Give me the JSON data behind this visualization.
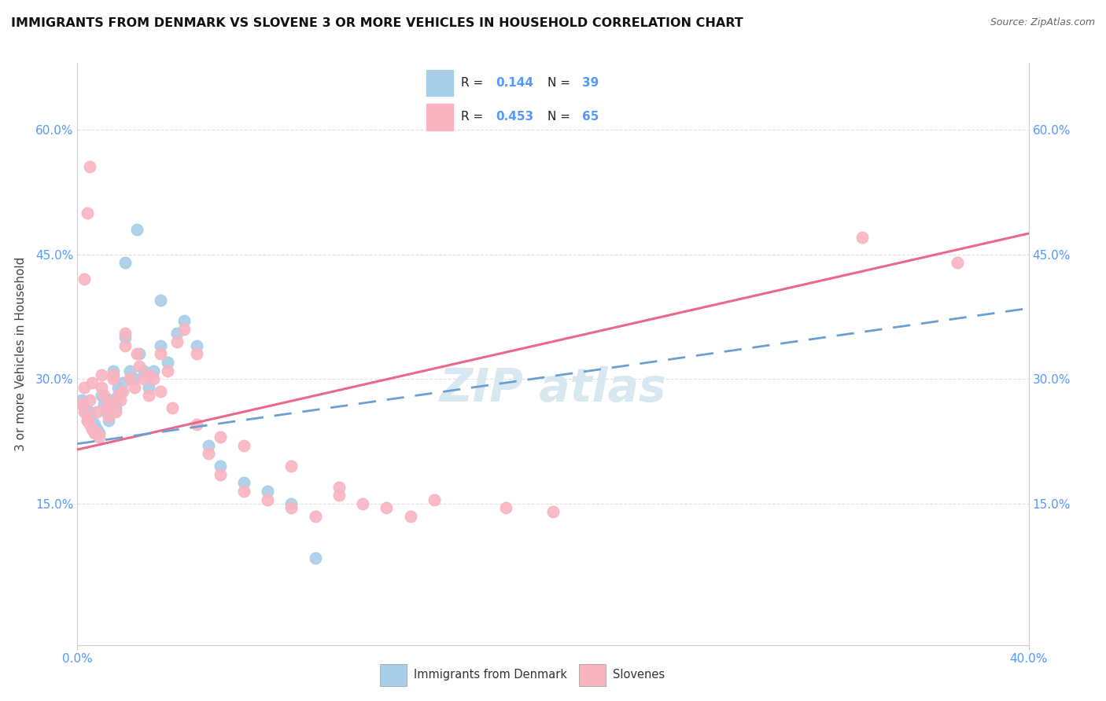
{
  "title": "IMMIGRANTS FROM DENMARK VS SLOVENE 3 OR MORE VEHICLES IN HOUSEHOLD CORRELATION CHART",
  "source": "Source: ZipAtlas.com",
  "ylabel": "3 or more Vehicles in Household",
  "y_tick_vals": [
    0.15,
    0.3,
    0.45,
    0.6
  ],
  "y_tick_labels": [
    "15.0%",
    "30.0%",
    "45.0%",
    "60.0%"
  ],
  "x_range": [
    0.0,
    0.4
  ],
  "y_range": [
    -0.02,
    0.68
  ],
  "color_denmark": "#A8CEE8",
  "color_slovene": "#F9B4C0",
  "trendline_color_denmark": "#6B9FD4",
  "trendline_color_slovene": "#E8698A",
  "dk_x": [
    0.002,
    0.003,
    0.004,
    0.005,
    0.006,
    0.007,
    0.008,
    0.009,
    0.01,
    0.011,
    0.012,
    0.013,
    0.014,
    0.015,
    0.016,
    0.017,
    0.018,
    0.019,
    0.02,
    0.022,
    0.024,
    0.026,
    0.028,
    0.03,
    0.032,
    0.035,
    0.038,
    0.042,
    0.045,
    0.05,
    0.055,
    0.06,
    0.07,
    0.08,
    0.09,
    0.1,
    0.02,
    0.025,
    0.035
  ],
  "dk_y": [
    0.275,
    0.265,
    0.255,
    0.26,
    0.25,
    0.245,
    0.24,
    0.235,
    0.28,
    0.27,
    0.26,
    0.25,
    0.275,
    0.31,
    0.265,
    0.29,
    0.285,
    0.295,
    0.35,
    0.31,
    0.3,
    0.33,
    0.31,
    0.29,
    0.31,
    0.34,
    0.32,
    0.355,
    0.37,
    0.34,
    0.22,
    0.195,
    0.175,
    0.165,
    0.15,
    0.085,
    0.44,
    0.48,
    0.395
  ],
  "sl_x": [
    0.002,
    0.003,
    0.004,
    0.005,
    0.006,
    0.007,
    0.008,
    0.009,
    0.01,
    0.011,
    0.012,
    0.013,
    0.014,
    0.015,
    0.016,
    0.017,
    0.018,
    0.019,
    0.02,
    0.022,
    0.024,
    0.026,
    0.028,
    0.03,
    0.032,
    0.035,
    0.038,
    0.042,
    0.045,
    0.05,
    0.055,
    0.06,
    0.07,
    0.08,
    0.09,
    0.1,
    0.11,
    0.12,
    0.13,
    0.14,
    0.003,
    0.004,
    0.005,
    0.006,
    0.008,
    0.01,
    0.015,
    0.02,
    0.025,
    0.03,
    0.035,
    0.04,
    0.05,
    0.06,
    0.07,
    0.09,
    0.11,
    0.15,
    0.18,
    0.2,
    0.003,
    0.004,
    0.005,
    0.33,
    0.37
  ],
  "sl_y": [
    0.27,
    0.26,
    0.25,
    0.245,
    0.24,
    0.235,
    0.235,
    0.23,
    0.29,
    0.28,
    0.265,
    0.255,
    0.27,
    0.3,
    0.26,
    0.28,
    0.275,
    0.285,
    0.34,
    0.3,
    0.29,
    0.315,
    0.3,
    0.28,
    0.3,
    0.33,
    0.31,
    0.345,
    0.36,
    0.33,
    0.21,
    0.185,
    0.165,
    0.155,
    0.145,
    0.135,
    0.16,
    0.15,
    0.145,
    0.135,
    0.29,
    0.25,
    0.275,
    0.295,
    0.26,
    0.305,
    0.305,
    0.355,
    0.33,
    0.305,
    0.285,
    0.265,
    0.245,
    0.23,
    0.22,
    0.195,
    0.17,
    0.155,
    0.145,
    0.14,
    0.42,
    0.5,
    0.555,
    0.47,
    0.44
  ],
  "dk_trend_x0": 0.0,
  "dk_trend_x1": 0.4,
  "dk_trend_y0": 0.222,
  "dk_trend_y1": 0.385,
  "sl_trend_x0": 0.0,
  "sl_trend_x1": 0.4,
  "sl_trend_y0": 0.215,
  "sl_trend_y1": 0.475,
  "background_color": "#ffffff",
  "grid_color": "#e0e0e0",
  "tick_color": "#5599FF"
}
